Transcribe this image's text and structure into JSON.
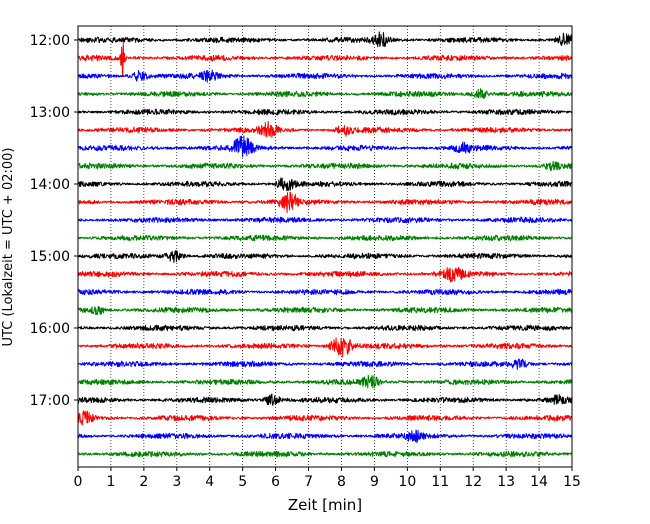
{
  "chart_data": {
    "type": "line",
    "title": "",
    "xlabel": "Zeit  [min]",
    "ylabel": "UTC (Lokalzeit = UTC + 02:00)",
    "xlim": [
      0,
      15
    ],
    "x_ticks": [
      "0",
      "1",
      "2",
      "3",
      "4",
      "5",
      "6",
      "7",
      "8",
      "9",
      "10",
      "11",
      "12",
      "13",
      "14",
      "15"
    ],
    "y_ticks": [
      {
        "label": "12:00",
        "row": 0
      },
      {
        "label": "13:00",
        "row": 4
      },
      {
        "label": "14:00",
        "row": 8
      },
      {
        "label": "15:00",
        "row": 12
      },
      {
        "label": "16:00",
        "row": 16
      },
      {
        "label": "17:00",
        "row": 20
      }
    ],
    "grid": "vertical-dotted",
    "row_interval_min": 15,
    "row_colors": [
      "#000000",
      "#ff0000",
      "#0000ff",
      "#008000"
    ],
    "series": [
      {
        "start": "12:00",
        "events": [
          {
            "t": 9.2,
            "amp": 0.35
          },
          {
            "t": 14.8,
            "amp": 0.3
          }
        ]
      },
      {
        "start": "12:15",
        "events": [
          {
            "t": 1.35,
            "amp": 1.0
          }
        ]
      },
      {
        "start": "12:30",
        "events": [
          {
            "t": 1.9,
            "amp": 0.3
          },
          {
            "t": 4.0,
            "amp": 0.25
          }
        ]
      },
      {
        "start": "12:45",
        "events": [
          {
            "t": 12.2,
            "amp": 0.25
          }
        ]
      },
      {
        "start": "13:00",
        "events": []
      },
      {
        "start": "13:15",
        "events": [
          {
            "t": 5.8,
            "amp": 0.35
          },
          {
            "t": 8.1,
            "amp": 0.25
          }
        ]
      },
      {
        "start": "13:30",
        "events": [
          {
            "t": 5.0,
            "amp": 0.55
          },
          {
            "t": 11.7,
            "amp": 0.25
          }
        ]
      },
      {
        "start": "13:45",
        "events": [
          {
            "t": 14.4,
            "amp": 0.2
          }
        ]
      },
      {
        "start": "14:00",
        "events": [
          {
            "t": 6.3,
            "amp": 0.35
          }
        ]
      },
      {
        "start": "14:15",
        "events": [
          {
            "t": 6.4,
            "amp": 0.45
          }
        ]
      },
      {
        "start": "14:30",
        "events": []
      },
      {
        "start": "14:45",
        "events": []
      },
      {
        "start": "15:00",
        "events": [
          {
            "t": 2.9,
            "amp": 0.3
          }
        ]
      },
      {
        "start": "15:15",
        "events": [
          {
            "t": 11.4,
            "amp": 0.4
          }
        ]
      },
      {
        "start": "15:30",
        "events": []
      },
      {
        "start": "15:45",
        "events": [
          {
            "t": 0.6,
            "amp": 0.2
          }
        ]
      },
      {
        "start": "16:00",
        "events": []
      },
      {
        "start": "16:15",
        "events": [
          {
            "t": 8.0,
            "amp": 0.6
          }
        ]
      },
      {
        "start": "16:30",
        "events": [
          {
            "t": 13.4,
            "amp": 0.2
          }
        ]
      },
      {
        "start": "16:45",
        "events": [
          {
            "t": 8.9,
            "amp": 0.3
          }
        ]
      },
      {
        "start": "17:00",
        "events": [
          {
            "t": 5.9,
            "amp": 0.3
          },
          {
            "t": 14.6,
            "amp": 0.2
          }
        ]
      },
      {
        "start": "17:15",
        "events": [
          {
            "t": 0.2,
            "amp": 0.3
          }
        ]
      },
      {
        "start": "17:30",
        "events": [
          {
            "t": 10.2,
            "amp": 0.25
          }
        ]
      },
      {
        "start": "17:45",
        "events": []
      }
    ]
  }
}
